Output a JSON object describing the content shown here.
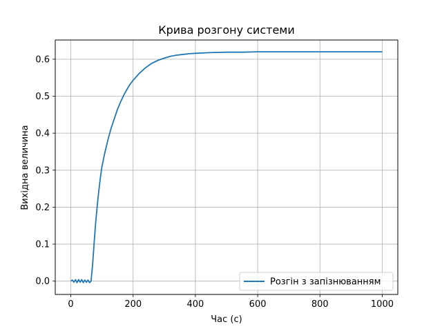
{
  "chart_data": {
    "type": "line",
    "title": "Крива розгону системи",
    "xlabel": "Час (с)",
    "ylabel": "Вихідна величина",
    "xlim": [
      -50,
      1050
    ],
    "ylim": [
      -0.036,
      0.652
    ],
    "xticks": [
      0,
      200,
      400,
      600,
      800,
      1000
    ],
    "xtick_labels": [
      "0",
      "200",
      "400",
      "600",
      "800",
      "1000"
    ],
    "yticks": [
      0.0,
      0.1,
      0.2,
      0.3,
      0.4,
      0.5,
      0.6
    ],
    "ytick_labels": [
      "0.0",
      "0.1",
      "0.2",
      "0.3",
      "0.4",
      "0.5",
      "0.6"
    ],
    "grid": true,
    "legend_position": "lower-right",
    "series": [
      {
        "name": "Розгін з запізнюванням",
        "color": "#1f77b4",
        "x": [
          0,
          5,
          10,
          15,
          20,
          25,
          30,
          35,
          40,
          45,
          50,
          55,
          60,
          65,
          70,
          75,
          80,
          85,
          90,
          95,
          100,
          110,
          120,
          130,
          140,
          150,
          160,
          170,
          180,
          190,
          200,
          220,
          240,
          260,
          280,
          300,
          320,
          340,
          360,
          380,
          400,
          450,
          500,
          550,
          600,
          700,
          800,
          900,
          1000
        ],
        "y": [
          0.0,
          0.003,
          -0.003,
          0.004,
          -0.004,
          0.004,
          -0.003,
          0.004,
          -0.004,
          0.003,
          -0.003,
          0.003,
          -0.004,
          0.0,
          0.045,
          0.105,
          0.16,
          0.205,
          0.245,
          0.28,
          0.31,
          0.35,
          0.385,
          0.415,
          0.44,
          0.465,
          0.485,
          0.503,
          0.518,
          0.532,
          0.543,
          0.562,
          0.577,
          0.589,
          0.597,
          0.603,
          0.608,
          0.611,
          0.613,
          0.615,
          0.616,
          0.618,
          0.619,
          0.619,
          0.62,
          0.62,
          0.62,
          0.62,
          0.62
        ]
      }
    ]
  }
}
